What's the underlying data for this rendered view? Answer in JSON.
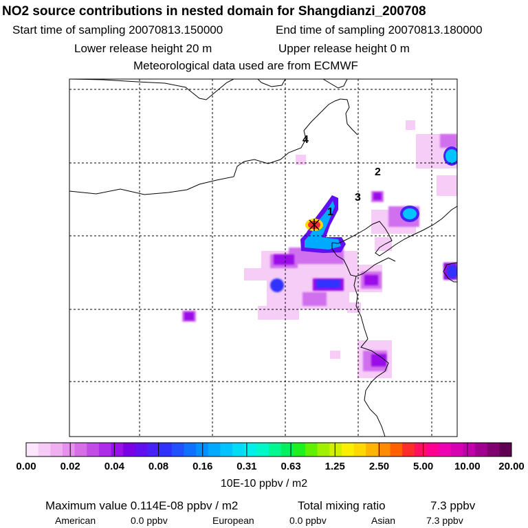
{
  "header": {
    "title": "NO2 source contributions in nested domain for Shangdianzi_200708",
    "start_label": "Start time of sampling 20070813.150000",
    "end_label": "End time of sampling 20070813.180000",
    "lower_label": "Lower release height   20 m",
    "upper_label": "Upper release height    0 m",
    "met_label": "Meteorological data used are from ECMWF"
  },
  "map_labels": [
    "1",
    "2",
    "3",
    "4"
  ],
  "colorbar": {
    "ticks": [
      "0.00",
      "0.02",
      "0.04",
      "0.08",
      "0.16",
      "0.31",
      "0.63",
      "1.25",
      "2.50",
      "5.00",
      "10.00",
      "20.00"
    ],
    "unit": "10E-10 ppbv / m2",
    "colors": [
      "#fbe6fb",
      "#f6ccf6",
      "#f0b0f0",
      "#e890ef",
      "#d66ee8",
      "#c24ce6",
      "#ae2ee8",
      "#9a10e8",
      "#7a00e8",
      "#6010f0",
      "#4820f8",
      "#3030ff",
      "#2050ff",
      "#1070ff",
      "#0090ff",
      "#00aaff",
      "#00c4ff",
      "#00dcf6",
      "#00f0e8",
      "#00f8c8",
      "#00f890",
      "#00f060",
      "#20f020",
      "#60f000",
      "#a0f000",
      "#d0f000",
      "#f8f000",
      "#ffd800",
      "#ffb400",
      "#ff8c00",
      "#ff6000",
      "#ff2c2c",
      "#ff1060",
      "#ff0090",
      "#f000b0",
      "#d800b0",
      "#c000a8",
      "#a00090",
      "#800070",
      "#600050"
    ]
  },
  "footer": {
    "max_label": "Maximum value  0.114E-08 ppbv / m2",
    "total_label": "Total mixing ratio",
    "total_value": "7.3 ppbv",
    "american_label": "American",
    "american_value": "0.0 ppbv",
    "european_label": "European",
    "european_value": "0.0 ppbv",
    "asian_label": "Asian",
    "asian_value": "7.3 ppbv"
  },
  "chart_data": {
    "type": "heatmap",
    "title": "NO2 source contributions in nested domain for Shangdianzi_200708",
    "color_scale_ticks": [
      0.0,
      0.02,
      0.04,
      0.08,
      0.16,
      0.31,
      0.63,
      1.25,
      2.5,
      5.0,
      10.0,
      20.0
    ],
    "color_scale_unit": "10E-10 ppbv / m2",
    "maximum_value": "0.114E-08 ppbv / m2",
    "grid": true
  }
}
